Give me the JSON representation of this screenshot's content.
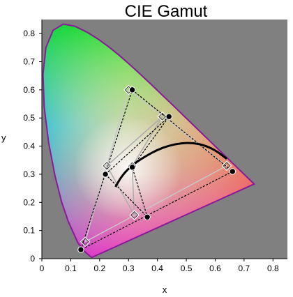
{
  "chart_data": {
    "type": "scatter",
    "title": "CIE Gamut",
    "xlabel": "x",
    "ylabel": "y",
    "xlim": [
      0,
      0.85
    ],
    "ylim": [
      0,
      0.85
    ],
    "x_ticks": [
      "0",
      "0.1",
      "0.2",
      "0.3",
      "0.4",
      "0.5",
      "0.6",
      "0.7",
      "0.8"
    ],
    "y_ticks": [
      "0",
      "0.1",
      "0.2",
      "0.3",
      "0.4",
      "0.5",
      "0.6",
      "0.7",
      "0.8"
    ],
    "background_color": "#808080",
    "spectral_locus": {
      "color": "#8a1a9a",
      "points": [
        [
          0.1741,
          0.005
        ],
        [
          0.1738,
          0.0049
        ],
        [
          0.1733,
          0.0048
        ],
        [
          0.1726,
          0.0048
        ],
        [
          0.1714,
          0.0051
        ],
        [
          0.1689,
          0.0069
        ],
        [
          0.1644,
          0.0109
        ],
        [
          0.1566,
          0.0177
        ],
        [
          0.144,
          0.0297
        ],
        [
          0.1241,
          0.0578
        ],
        [
          0.0913,
          0.1327
        ],
        [
          0.0687,
          0.2007
        ],
        [
          0.0454,
          0.295
        ],
        [
          0.0235,
          0.4127
        ],
        [
          0.0082,
          0.5384
        ],
        [
          0.0039,
          0.6548
        ],
        [
          0.0139,
          0.7502
        ],
        [
          0.0389,
          0.812
        ],
        [
          0.0743,
          0.8338
        ],
        [
          0.1142,
          0.8262
        ],
        [
          0.1547,
          0.8059
        ],
        [
          0.1929,
          0.7816
        ],
        [
          0.2296,
          0.7543
        ],
        [
          0.2658,
          0.7243
        ],
        [
          0.3016,
          0.6923
        ],
        [
          0.3373,
          0.6589
        ],
        [
          0.3731,
          0.6245
        ],
        [
          0.4087,
          0.5896
        ],
        [
          0.4441,
          0.5547
        ],
        [
          0.4788,
          0.5202
        ],
        [
          0.5125,
          0.4866
        ],
        [
          0.5448,
          0.4544
        ],
        [
          0.5752,
          0.4242
        ],
        [
          0.6029,
          0.3965
        ],
        [
          0.627,
          0.3725
        ],
        [
          0.6482,
          0.3514
        ],
        [
          0.6658,
          0.334
        ],
        [
          0.6801,
          0.3197
        ],
        [
          0.6915,
          0.3083
        ],
        [
          0.7006,
          0.2993
        ],
        [
          0.7079,
          0.292
        ],
        [
          0.714,
          0.2859
        ],
        [
          0.719,
          0.2809
        ],
        [
          0.723,
          0.277
        ],
        [
          0.726,
          0.274
        ],
        [
          0.7347,
          0.2653
        ]
      ]
    },
    "planckian_locus": {
      "color": "#000000",
      "points": [
        [
          0.255,
          0.255
        ],
        [
          0.27,
          0.283
        ],
        [
          0.29,
          0.31
        ],
        [
          0.32,
          0.338
        ],
        [
          0.36,
          0.365
        ],
        [
          0.4,
          0.387
        ],
        [
          0.44,
          0.402
        ],
        [
          0.48,
          0.41
        ],
        [
          0.52,
          0.412
        ],
        [
          0.56,
          0.404
        ],
        [
          0.6,
          0.386
        ],
        [
          0.64,
          0.355
        ]
      ]
    },
    "series": [
      {
        "marker": "diamond",
        "line": "solid",
        "line_color": "#c8c8c8",
        "points": [
          [
            0.3,
            0.6
          ],
          [
            0.64,
            0.33
          ],
          [
            0.15,
            0.06
          ]
        ]
      },
      {
        "marker": "circle",
        "line": "dashed",
        "line_color": "#000000",
        "points": [
          [
            0.313,
            0.6
          ],
          [
            0.66,
            0.31
          ],
          [
            0.135,
            0.032
          ]
        ]
      },
      {
        "marker": "diamond",
        "line": "solid",
        "line_color": "#aaaaaa",
        "points": [
          [
            0.225,
            0.33
          ],
          [
            0.417,
            0.505
          ],
          [
            0.3127,
            0.329
          ],
          [
            0.32,
            0.155
          ]
        ]
      },
      {
        "marker": "circle",
        "line": "dashed",
        "line_color": "#000000",
        "points": [
          [
            0.22,
            0.3
          ],
          [
            0.44,
            0.505
          ],
          [
            0.313,
            0.325
          ],
          [
            0.365,
            0.148
          ]
        ]
      }
    ]
  }
}
